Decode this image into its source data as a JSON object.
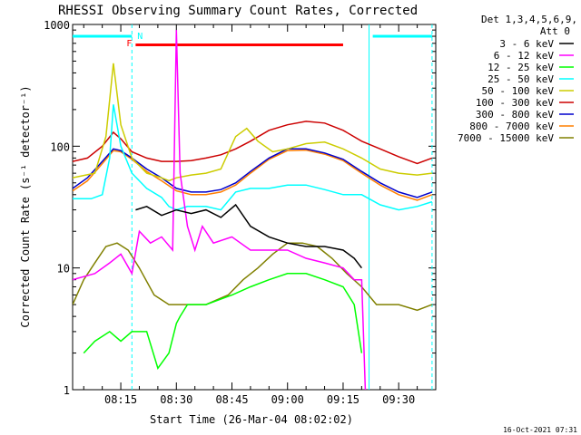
{
  "chart_data": {
    "type": "line",
    "title": "RHESSI Observing Summary Count Rates, Corrected",
    "ylabel": "Corrected Count Rate (s⁻¹ detector⁻¹)",
    "xlabel": "Start Time (26-Mar-04 08:02:02)",
    "footer": "16-Oct-2021 07:31",
    "yscale": "log",
    "ylim": [
      1,
      1000
    ],
    "y_ticks": [
      {
        "value": 1,
        "label": "1"
      },
      {
        "value": 10,
        "label": "10"
      },
      {
        "value": 100,
        "label": "100"
      },
      {
        "value": 1000,
        "label": "1000"
      }
    ],
    "xlim": [
      "08:02",
      "09:40"
    ],
    "x_ticks": [
      {
        "value": "08:15",
        "label": "08:15"
      },
      {
        "value": "08:30",
        "label": "08:30"
      },
      {
        "value": "08:45",
        "label": "08:45"
      },
      {
        "value": "09:00",
        "label": "09:00"
      },
      {
        "value": "09:15",
        "label": "09:15"
      },
      {
        "value": "09:30",
        "label": "09:30"
      }
    ],
    "legend": {
      "position": "right",
      "header": [
        "Det 1,3,4,5,6,9,",
        "Att 0"
      ]
    },
    "annotations": [
      {
        "label": "N",
        "time": "08:18",
        "color": "#00ffff"
      },
      {
        "label": "F",
        "time": "08:19",
        "color": "#ff0000"
      }
    ],
    "bars": [
      {
        "name": "night",
        "start": "08:02",
        "end": "08:18",
        "value": 800,
        "color": "#00ffff"
      },
      {
        "name": "night",
        "start": "09:23",
        "end": "09:39",
        "value": 800,
        "color": "#00ffff"
      },
      {
        "name": "flare",
        "start": "08:19",
        "end": "09:15",
        "value": 680,
        "color": "#ff0000"
      }
    ],
    "vlines": [
      {
        "time": "08:18",
        "style": "dashed",
        "color": "#00ffff"
      },
      {
        "time": "09:22",
        "style": "solid",
        "color": "#00ffff"
      },
      {
        "time": "09:39",
        "style": "dashed",
        "color": "#00ffff"
      }
    ],
    "series": [
      {
        "name": "3 - 6 keV",
        "color": "#000000",
        "t": [
          "08:19",
          "08:22",
          "08:26",
          "08:30",
          "08:34",
          "08:38",
          "08:42",
          "08:46",
          "08:50",
          "08:55",
          "09:00",
          "09:05",
          "09:10",
          "09:15",
          "09:18",
          "09:20"
        ],
        "values": [
          30,
          32,
          27,
          30,
          28,
          30,
          26,
          33,
          22,
          18,
          16,
          15,
          15,
          14,
          12,
          10
        ]
      },
      {
        "name": "6 - 12 keV",
        "color": "#ff00ff",
        "t": [
          "08:02",
          "08:08",
          "08:12",
          "08:15",
          "08:18",
          "08:20",
          "08:23",
          "08:26",
          "08:29",
          "08:30",
          "08:31",
          "08:33",
          "08:35",
          "08:37",
          "08:40",
          "08:45",
          "08:50",
          "08:55",
          "09:00",
          "09:05",
          "09:10",
          "09:15",
          "09:18",
          "09:20",
          "09:21"
        ],
        "values": [
          8,
          9,
          11,
          13,
          9,
          20,
          16,
          18,
          14,
          900,
          60,
          22,
          14,
          22,
          16,
          18,
          14,
          14,
          14,
          12,
          11,
          10,
          8,
          8,
          1
        ]
      },
      {
        "name": "12 - 25 keV",
        "color": "#00ff00",
        "t": [
          "08:05",
          "08:08",
          "08:12",
          "08:15",
          "08:18",
          "08:22",
          "08:25",
          "08:28",
          "08:30",
          "08:31",
          "08:33",
          "08:38",
          "08:45",
          "08:50",
          "08:55",
          "09:00",
          "09:05",
          "09:10",
          "09:15",
          "09:18",
          "09:20"
        ],
        "values": [
          2,
          2.5,
          3,
          2.5,
          3,
          3,
          1.5,
          2,
          3.5,
          4,
          5,
          5,
          6,
          7,
          8,
          9,
          9,
          8,
          7,
          5,
          2
        ]
      },
      {
        "name": "25 - 50 keV",
        "color": "#00ffff",
        "t": [
          "08:02",
          "08:07",
          "08:10",
          "08:12",
          "08:13",
          "08:15",
          "08:18",
          "08:22",
          "08:26",
          "08:28",
          "08:30",
          "08:33",
          "08:38",
          "08:42",
          "08:46",
          "08:50",
          "08:55",
          "09:00",
          "09:05",
          "09:10",
          "09:15",
          "09:20",
          "09:25",
          "09:30",
          "09:35",
          "09:39"
        ],
        "values": [
          37,
          37,
          40,
          80,
          220,
          100,
          60,
          45,
          38,
          32,
          30,
          32,
          32,
          30,
          42,
          45,
          45,
          48,
          48,
          44,
          40,
          40,
          33,
          30,
          32,
          35
        ]
      },
      {
        "name": "50 - 100 keV",
        "color": "#cccc00",
        "t": [
          "08:02",
          "08:08",
          "08:11",
          "08:13",
          "08:15",
          "08:18",
          "08:22",
          "08:26",
          "08:28",
          "08:30",
          "08:34",
          "08:38",
          "08:42",
          "08:46",
          "08:49",
          "08:52",
          "08:56",
          "09:00",
          "09:05",
          "09:10",
          "09:15",
          "09:20",
          "09:25",
          "09:30",
          "09:35",
          "09:39"
        ],
        "values": [
          55,
          60,
          120,
          480,
          150,
          80,
          60,
          55,
          52,
          55,
          58,
          60,
          65,
          120,
          140,
          110,
          90,
          95,
          105,
          108,
          95,
          80,
          65,
          60,
          58,
          60
        ]
      },
      {
        "name": "100 - 300 keV",
        "color": "#cc0000",
        "t": [
          "08:02",
          "08:06",
          "08:10",
          "08:13",
          "08:15",
          "08:18",
          "08:22",
          "08:26",
          "08:30",
          "08:34",
          "08:38",
          "08:42",
          "08:46",
          "08:50",
          "08:55",
          "09:00",
          "09:05",
          "09:10",
          "09:15",
          "09:20",
          "09:25",
          "09:30",
          "09:35",
          "09:39"
        ],
        "values": [
          75,
          80,
          100,
          130,
          115,
          90,
          80,
          75,
          75,
          76,
          80,
          85,
          95,
          110,
          135,
          150,
          160,
          155,
          135,
          110,
          95,
          82,
          72,
          80
        ]
      },
      {
        "name": "300 - 800 keV",
        "color": "#0000cc",
        "t": [
          "08:02",
          "08:06",
          "08:10",
          "08:13",
          "08:15",
          "08:18",
          "08:22",
          "08:26",
          "08:30",
          "08:34",
          "08:38",
          "08:42",
          "08:46",
          "08:50",
          "08:55",
          "09:00",
          "09:05",
          "09:10",
          "09:15",
          "09:20",
          "09:25",
          "09:30",
          "09:35",
          "09:39"
        ],
        "values": [
          45,
          55,
          75,
          95,
          92,
          80,
          65,
          55,
          45,
          42,
          42,
          44,
          50,
          62,
          80,
          95,
          95,
          88,
          78,
          62,
          50,
          42,
          38,
          42
        ]
      },
      {
        "name": "800 - 7000 keV",
        "color": "#ff7f00",
        "t": [
          "08:02",
          "08:06",
          "08:10",
          "08:13",
          "08:15",
          "08:18",
          "08:22",
          "08:26",
          "08:30",
          "08:34",
          "08:38",
          "08:42",
          "08:46",
          "08:50",
          "08:55",
          "09:00",
          "09:05",
          "09:10",
          "09:15",
          "09:20",
          "09:25",
          "09:30",
          "09:35",
          "09:39"
        ],
        "values": [
          43,
          52,
          72,
          92,
          90,
          78,
          62,
          52,
          43,
          40,
          40,
          42,
          48,
          60,
          78,
          92,
          93,
          86,
          76,
          60,
          48,
          40,
          36,
          40
        ]
      },
      {
        "name": "7000 - 15000 keV",
        "color": "#808000",
        "t": [
          "08:02",
          "08:05",
          "08:08",
          "08:11",
          "08:14",
          "08:17",
          "08:20",
          "08:24",
          "08:28",
          "08:32",
          "08:38",
          "08:44",
          "08:48",
          "08:52",
          "08:56",
          "09:00",
          "09:04",
          "09:08",
          "09:12",
          "09:16",
          "09:20",
          "09:24",
          "09:30",
          "09:35",
          "09:39"
        ],
        "values": [
          5,
          8,
          11,
          15,
          16,
          14,
          10,
          6,
          5,
          5,
          5,
          6,
          8,
          10,
          13,
          16,
          16,
          15,
          12,
          9,
          7,
          5,
          5,
          4.5,
          5
        ]
      }
    ]
  }
}
